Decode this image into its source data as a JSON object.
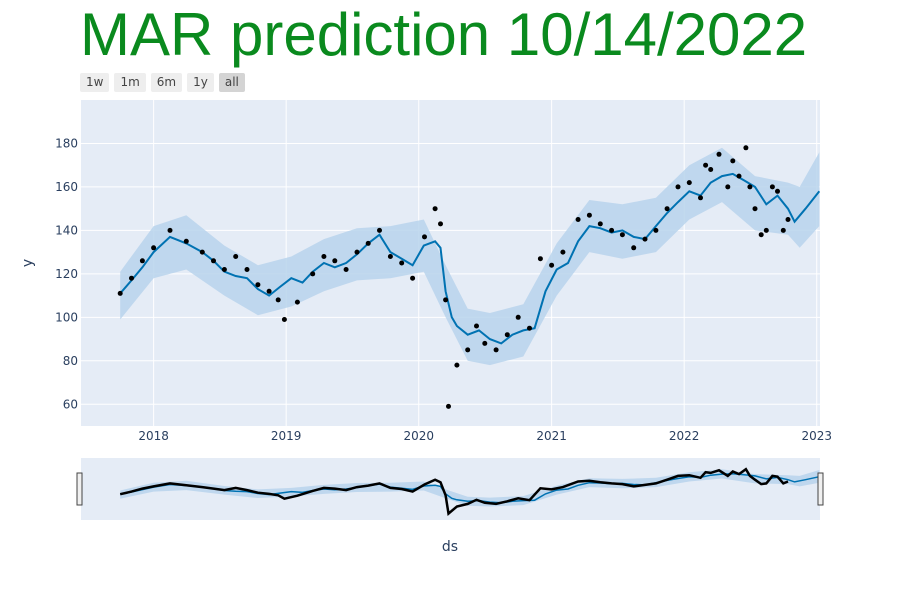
{
  "title": "MAR prediction 10/14/2022",
  "colors": {
    "title": "#0a8a1e",
    "plot_bg": "#e5ecf6",
    "grid": "#ffffff",
    "forecast_line": "#0072b2",
    "uncertainty_band": "#b8d4ec",
    "actual_points": "#000000",
    "axis_text": "#2a3f5f"
  },
  "range_buttons": [
    {
      "label": "1w"
    },
    {
      "label": "1m"
    },
    {
      "label": "6m"
    },
    {
      "label": "1y"
    },
    {
      "label": "all",
      "active": true
    }
  ],
  "chart_data": {
    "type": "line",
    "title": "MAR prediction 10/14/2022",
    "xlabel": "ds",
    "ylabel": "y",
    "x_ticks": [
      "2018",
      "2019",
      "2020",
      "2021",
      "2022",
      "2023"
    ],
    "y_ticks": [
      60,
      80,
      100,
      120,
      140,
      160,
      180
    ],
    "ylim": [
      50,
      200
    ],
    "xlim": [
      "2017-06-15",
      "2023-01-10"
    ],
    "grid": true,
    "range_slider": true,
    "series": [
      {
        "kind": "actual",
        "style": "markers",
        "x": [
          "2017-10-01",
          "2017-11-01",
          "2017-12-01",
          "2018-01-01",
          "2018-02-15",
          "2018-04-01",
          "2018-05-15",
          "2018-06-15",
          "2018-07-15",
          "2018-08-15",
          "2018-09-15",
          "2018-10-15",
          "2018-11-15",
          "2018-12-10",
          "2018-12-27",
          "2019-02-01",
          "2019-03-15",
          "2019-04-15",
          "2019-05-15",
          "2019-06-15",
          "2019-07-15",
          "2019-08-15",
          "2019-09-15",
          "2019-10-15",
          "2019-11-15",
          "2019-12-15",
          "2020-01-17",
          "2020-02-15",
          "2020-03-01",
          "2020-03-15",
          "2020-03-23",
          "2020-04-15",
          "2020-05-15",
          "2020-06-08",
          "2020-07-01",
          "2020-08-01",
          "2020-09-01",
          "2020-10-01",
          "2020-11-01",
          "2020-12-01",
          "2021-01-01",
          "2021-02-01",
          "2021-03-15",
          "2021-04-15",
          "2021-05-15",
          "2021-06-15",
          "2021-07-15",
          "2021-08-15",
          "2021-09-15",
          "2021-10-15",
          "2021-11-15",
          "2021-12-15",
          "2022-01-15",
          "2022-02-15",
          "2022-03-01",
          "2022-03-15",
          "2022-04-07",
          "2022-05-01",
          "2022-05-15",
          "2022-06-01",
          "2022-06-20",
          "2022-07-01",
          "2022-07-15",
          "2022-08-01",
          "2022-08-15",
          "2022-09-01",
          "2022-09-15",
          "2022-10-01",
          "2022-10-14"
        ],
        "y": [
          111,
          118,
          126,
          132,
          140,
          135,
          130,
          126,
          122,
          128,
          122,
          115,
          112,
          108,
          99,
          107,
          120,
          128,
          126,
          122,
          130,
          134,
          140,
          128,
          125,
          118,
          137,
          150,
          143,
          108,
          59,
          78,
          85,
          96,
          88,
          85,
          92,
          100,
          95,
          127,
          124,
          130,
          145,
          147,
          143,
          140,
          138,
          132,
          136,
          140,
          150,
          160,
          162,
          155,
          170,
          168,
          175,
          160,
          172,
          165,
          178,
          160,
          150,
          138,
          140,
          160,
          158,
          140,
          145
        ]
      },
      {
        "kind": "forecast",
        "style": "line",
        "x": [
          "2017-10-01",
          "2017-11-01",
          "2017-12-01",
          "2018-01-01",
          "2018-02-15",
          "2018-04-01",
          "2018-05-15",
          "2018-06-15",
          "2018-07-15",
          "2018-08-15",
          "2018-09-15",
          "2018-10-15",
          "2018-11-15",
          "2018-12-15",
          "2019-01-15",
          "2019-02-15",
          "2019-03-15",
          "2019-04-15",
          "2019-05-15",
          "2019-06-15",
          "2019-07-15",
          "2019-08-15",
          "2019-09-15",
          "2019-10-15",
          "2019-11-15",
          "2019-12-15",
          "2020-01-15",
          "2020-02-15",
          "2020-03-01",
          "2020-03-15",
          "2020-04-01",
          "2020-04-15",
          "2020-05-15",
          "2020-06-15",
          "2020-07-15",
          "2020-08-15",
          "2020-09-15",
          "2020-10-15",
          "2020-11-15",
          "2020-12-15",
          "2021-01-15",
          "2021-02-15",
          "2021-03-15",
          "2021-04-15",
          "2021-05-15",
          "2021-06-15",
          "2021-07-15",
          "2021-08-15",
          "2021-09-15",
          "2021-10-15",
          "2021-11-15",
          "2021-12-15",
          "2022-01-15",
          "2022-02-15",
          "2022-03-15",
          "2022-04-15",
          "2022-05-15",
          "2022-06-15",
          "2022-07-15",
          "2022-08-15",
          "2022-09-15",
          "2022-10-14",
          "2022-11-01",
          "2022-12-01",
          "2023-01-08"
        ],
        "y": [
          111,
          117,
          123,
          130,
          137,
          134,
          130,
          126,
          121,
          119,
          118,
          113,
          110,
          114,
          118,
          116,
          121,
          125,
          123,
          125,
          129,
          134,
          138,
          130,
          127,
          124,
          133,
          135,
          132,
          112,
          100,
          96,
          92,
          94,
          90,
          88,
          92,
          94,
          95,
          112,
          122,
          125,
          135,
          142,
          141,
          139,
          140,
          137,
          136,
          142,
          148,
          153,
          158,
          156,
          162,
          165,
          166,
          163,
          160,
          152,
          156,
          150,
          144,
          150,
          158
        ]
      }
    ],
    "uncertainty_band": {
      "x": [
        "2017-10-01",
        "2018-01-01",
        "2018-04-01",
        "2018-07-15",
        "2018-10-15",
        "2019-01-15",
        "2019-04-15",
        "2019-07-15",
        "2019-10-15",
        "2020-01-15",
        "2020-03-15",
        "2020-05-15",
        "2020-07-15",
        "2020-10-15",
        "2021-01-15",
        "2021-04-15",
        "2021-07-15",
        "2021-10-15",
        "2022-01-15",
        "2022-04-15",
        "2022-07-15",
        "2022-10-14",
        "2022-11-15",
        "2023-01-08"
      ],
      "lower": [
        99,
        118,
        122,
        110,
        101,
        105,
        112,
        117,
        118,
        121,
        100,
        80,
        78,
        82,
        110,
        130,
        127,
        130,
        145,
        153,
        140,
        138,
        132,
        142
      ],
      "upper": [
        121,
        142,
        147,
        133,
        124,
        128,
        136,
        141,
        142,
        145,
        124,
        104,
        102,
        106,
        134,
        154,
        152,
        155,
        170,
        178,
        165,
        162,
        160,
        176
      ]
    }
  }
}
